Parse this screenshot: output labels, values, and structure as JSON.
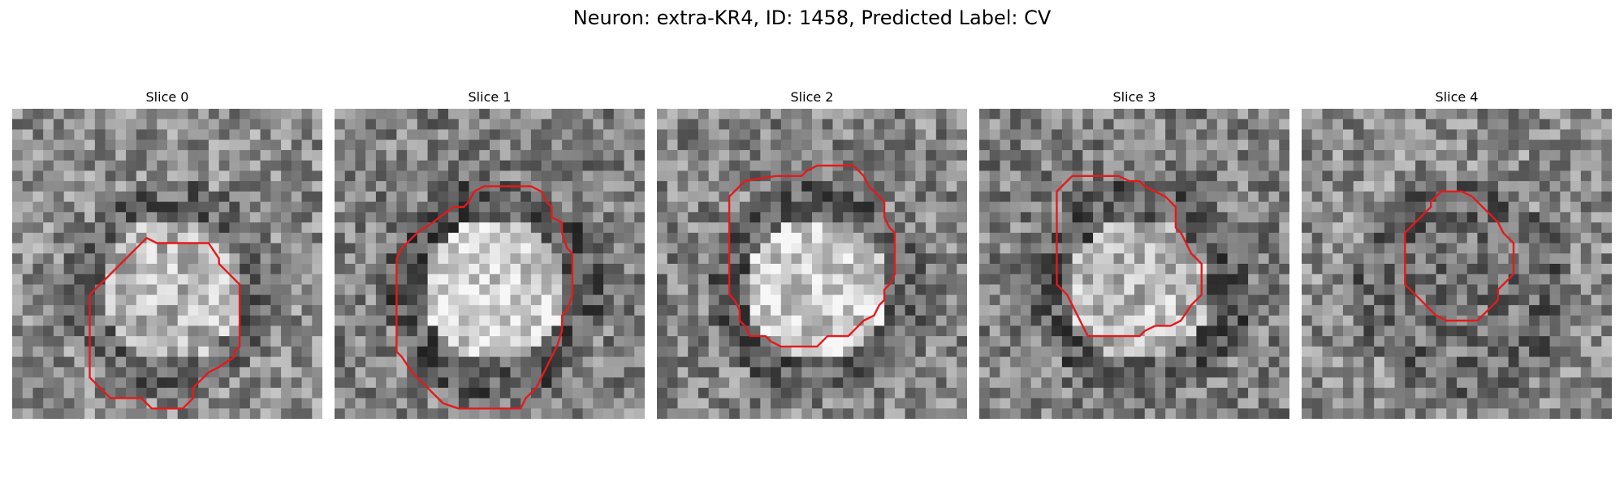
{
  "figure": {
    "title": "Neuron: extra-KR4, ID: 1458, Predicted Label: CV"
  },
  "panels": [
    {
      "title": "Slice 0",
      "seed": 11,
      "center_brightness": 0.72,
      "bg_brightness": 0.55,
      "contour": [
        [
          13,
          12.5
        ],
        [
          10.5,
          15
        ],
        [
          10,
          15.5
        ],
        [
          8.5,
          17
        ],
        [
          7.5,
          18
        ],
        [
          7.5,
          24
        ],
        [
          7.5,
          26
        ],
        [
          8.5,
          27
        ],
        [
          9.5,
          28
        ],
        [
          11,
          28
        ],
        [
          12.5,
          28
        ],
        [
          13,
          28.5
        ],
        [
          13.5,
          29
        ],
        [
          15.5,
          29
        ],
        [
          16.5,
          29
        ],
        [
          17.5,
          28
        ],
        [
          17.5,
          27
        ],
        [
          18,
          26.5
        ],
        [
          18.5,
          26
        ],
        [
          19,
          25.5
        ],
        [
          20,
          25
        ],
        [
          21.5,
          24
        ],
        [
          21.5,
          23.5
        ],
        [
          22,
          23
        ],
        [
          22,
          18
        ],
        [
          22,
          17
        ],
        [
          21.5,
          16.5
        ],
        [
          21,
          16
        ],
        [
          20,
          15
        ],
        [
          20,
          14.5
        ],
        [
          19,
          13
        ],
        [
          18.5,
          13
        ],
        [
          16.5,
          13
        ],
        [
          14,
          13
        ]
      ]
    },
    {
      "title": "Slice 1",
      "seed": 23,
      "center_brightness": 0.82,
      "bg_brightness": 0.5,
      "contour": [
        [
          11.5,
          9.5
        ],
        [
          9.5,
          11
        ],
        [
          8,
          12
        ],
        [
          7,
          13
        ],
        [
          6.5,
          13.5
        ],
        [
          6,
          14.5
        ],
        [
          6,
          22.5
        ],
        [
          6,
          23.5
        ],
        [
          6.5,
          24
        ],
        [
          7.5,
          25.5
        ],
        [
          8,
          26
        ],
        [
          9,
          27
        ],
        [
          10,
          28
        ],
        [
          10.5,
          28.5
        ],
        [
          12,
          29
        ],
        [
          17,
          29
        ],
        [
          18,
          29
        ],
        [
          18.5,
          28
        ],
        [
          19.5,
          27
        ],
        [
          20,
          26
        ],
        [
          20.5,
          25
        ],
        [
          21,
          24
        ],
        [
          21.5,
          23
        ],
        [
          22,
          21.5
        ],
        [
          22,
          20
        ],
        [
          22.5,
          19.5
        ],
        [
          23,
          18
        ],
        [
          23,
          15
        ],
        [
          23,
          14
        ],
        [
          22.5,
          13.5
        ],
        [
          22,
          12
        ],
        [
          22,
          11
        ],
        [
          21,
          10.5
        ],
        [
          21,
          9.5
        ],
        [
          20.5,
          9
        ],
        [
          20,
          8
        ],
        [
          19,
          7.5
        ],
        [
          17,
          7.5
        ],
        [
          14.5,
          7.5
        ],
        [
          13.5,
          8
        ],
        [
          13,
          9
        ],
        [
          12.5,
          9.5
        ]
      ]
    },
    {
      "title": "Slice 2",
      "seed": 37,
      "center_brightness": 0.8,
      "bg_brightness": 0.52,
      "contour": [
        [
          11.5,
          6.5
        ],
        [
          8.5,
          7
        ],
        [
          8,
          7.5
        ],
        [
          7.5,
          8
        ],
        [
          7,
          8.5
        ],
        [
          7,
          9
        ],
        [
          7,
          18
        ],
        [
          7.5,
          18.5
        ],
        [
          8,
          19.5
        ],
        [
          8,
          20.5
        ],
        [
          8.5,
          21
        ],
        [
          9,
          22
        ],
        [
          10.5,
          22
        ],
        [
          11,
          22.5
        ],
        [
          12,
          23
        ],
        [
          15.5,
          23
        ],
        [
          16.5,
          22
        ],
        [
          18.5,
          22
        ],
        [
          19,
          21.5
        ],
        [
          19.5,
          21
        ],
        [
          20,
          20.5
        ],
        [
          21,
          20
        ],
        [
          21.5,
          19
        ],
        [
          22,
          18.5
        ],
        [
          22,
          17.5
        ],
        [
          22.5,
          17
        ],
        [
          23,
          16
        ],
        [
          23,
          13
        ],
        [
          23,
          12
        ],
        [
          22.5,
          11.5
        ],
        [
          22,
          10.5
        ],
        [
          22,
          9
        ],
        [
          21.5,
          8.5
        ],
        [
          21,
          8
        ],
        [
          20.5,
          7.5
        ],
        [
          20,
          6.5
        ],
        [
          19.5,
          6
        ],
        [
          19,
          5.5
        ],
        [
          15.5,
          5.5
        ],
        [
          14.5,
          6
        ],
        [
          14,
          6.5
        ],
        [
          12,
          6.5
        ]
      ]
    },
    {
      "title": "Slice 3",
      "seed": 51,
      "center_brightness": 0.72,
      "bg_brightness": 0.5,
      "contour": [
        [
          8.5,
          7
        ],
        [
          7.5,
          8
        ],
        [
          7.5,
          17
        ],
        [
          8,
          17.5
        ],
        [
          8.5,
          18
        ],
        [
          9,
          19
        ],
        [
          9.5,
          20
        ],
        [
          10,
          21
        ],
        [
          10.5,
          22
        ],
        [
          11,
          22
        ],
        [
          12,
          22
        ],
        [
          15.5,
          22
        ],
        [
          16,
          21.5
        ],
        [
          17,
          21
        ],
        [
          18.5,
          21
        ],
        [
          19.5,
          20.5
        ],
        [
          20.5,
          19
        ],
        [
          21.5,
          18
        ],
        [
          21.5,
          16
        ],
        [
          21.5,
          15
        ],
        [
          21,
          14.5
        ],
        [
          20.5,
          14
        ],
        [
          20,
          13
        ],
        [
          19.5,
          12
        ],
        [
          19,
          11.5
        ],
        [
          19,
          10
        ],
        [
          19,
          9.5
        ],
        [
          18.5,
          9
        ],
        [
          18,
          8.5
        ],
        [
          17,
          8
        ],
        [
          16,
          7.5
        ],
        [
          15.5,
          7
        ],
        [
          14.5,
          7
        ],
        [
          13.5,
          6.5
        ],
        [
          12,
          6.5
        ],
        [
          9,
          6.5
        ]
      ]
    },
    {
      "title": "Slice 4",
      "seed": 67,
      "center_brightness": 0.45,
      "bg_brightness": 0.55,
      "contour": [
        [
          12.5,
          9.5
        ],
        [
          11.5,
          10.5
        ],
        [
          10.5,
          11.5
        ],
        [
          10,
          12
        ],
        [
          10,
          13
        ],
        [
          10,
          16
        ],
        [
          10,
          17
        ],
        [
          11,
          18
        ],
        [
          12,
          19
        ],
        [
          13,
          20
        ],
        [
          14,
          20.5
        ],
        [
          16,
          20.5
        ],
        [
          17,
          20.5
        ],
        [
          18,
          19.5
        ],
        [
          19,
          18.5
        ],
        [
          19,
          17.5
        ],
        [
          19.5,
          17
        ],
        [
          20,
          16.5
        ],
        [
          20.5,
          16
        ],
        [
          20.5,
          14.5
        ],
        [
          20.5,
          13
        ],
        [
          20,
          12.5
        ],
        [
          19.5,
          12
        ],
        [
          19,
          11
        ],
        [
          18.5,
          10.5
        ],
        [
          18,
          10
        ],
        [
          17.5,
          9.5
        ],
        [
          16.5,
          8.5
        ],
        [
          15.5,
          8
        ],
        [
          13.5,
          8
        ],
        [
          12.5,
          9
        ]
      ]
    }
  ]
}
